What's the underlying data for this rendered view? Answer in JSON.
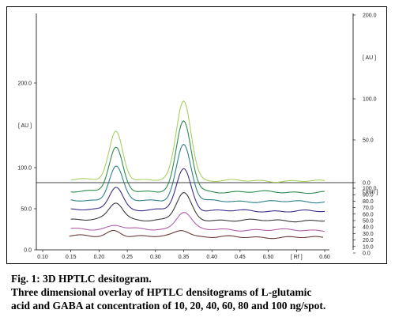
{
  "caption": {
    "title": "Fig. 1: 3D HPTLC desitogram.",
    "line2": "Three dimensional overlay of HPTLC densitograms of L-glutamic",
    "line3": "acid and GABA at concentration of 10, 20, 40, 60, 80 and 100 ng/spot."
  },
  "chart_data": {
    "type": "line",
    "title": "",
    "projection": "3D overlay",
    "xlabel": "[ Rf ]",
    "xlim": [
      0.1,
      0.6
    ],
    "x_ticks": [
      "0.10",
      "0.15",
      "0.20",
      "0.25",
      "0.30",
      "0.35",
      "0.40",
      "0.45",
      "0.50",
      "[ Rf ]",
      "0.60"
    ],
    "y_left_label": "[ AU ]",
    "y_left_ticks": [
      "0.0",
      "50.0",
      "100.0",
      "200.0"
    ],
    "y_right_label": "[ AU ]",
    "y_right_ticks": [
      "0.0",
      "50.0",
      "100.0",
      "200.0"
    ],
    "z_label": "[ mm ]",
    "z_ticks": [
      "0.0",
      "10.0",
      "20.0",
      "30.0",
      "40.0",
      "50.0",
      "60.0",
      "70.0",
      "80.0",
      "90.0",
      "100.0"
    ],
    "grid": false,
    "peaks_rf": [
      0.23,
      0.35
    ],
    "series": [
      {
        "color": "#6b3a3a",
        "baseline": 6,
        "peak1": 10,
        "peak2": 12
      },
      {
        "color": "#b05fa8",
        "baseline": 5,
        "peak1": 6,
        "peak2": 30
      },
      {
        "color": "#3a3a3a",
        "baseline": 5,
        "peak1": 28,
        "peak2": 45
      },
      {
        "color": "#3b2f8a",
        "baseline": 5,
        "peak1": 40,
        "peak2": 70
      },
      {
        "color": "#2f7f8a",
        "baseline": 5,
        "peak1": 58,
        "peak2": 95
      },
      {
        "color": "#2e8b4f",
        "baseline": 5,
        "peak1": 72,
        "peak2": 118
      },
      {
        "color": "#a8d060",
        "baseline": 5,
        "peak1": 82,
        "peak2": 135
      }
    ],
    "series_offsets": [
      {
        "dx": -2,
        "dy": 34
      },
      {
        "dx": 0,
        "dy": 24
      },
      {
        "dx": 0,
        "dy": 12
      },
      {
        "dx": 0,
        "dy": 0
      },
      {
        "dx": 0,
        "dy": -12
      },
      {
        "dx": 0,
        "dy": -24
      },
      {
        "dx": 0,
        "dy": -38
      }
    ]
  }
}
